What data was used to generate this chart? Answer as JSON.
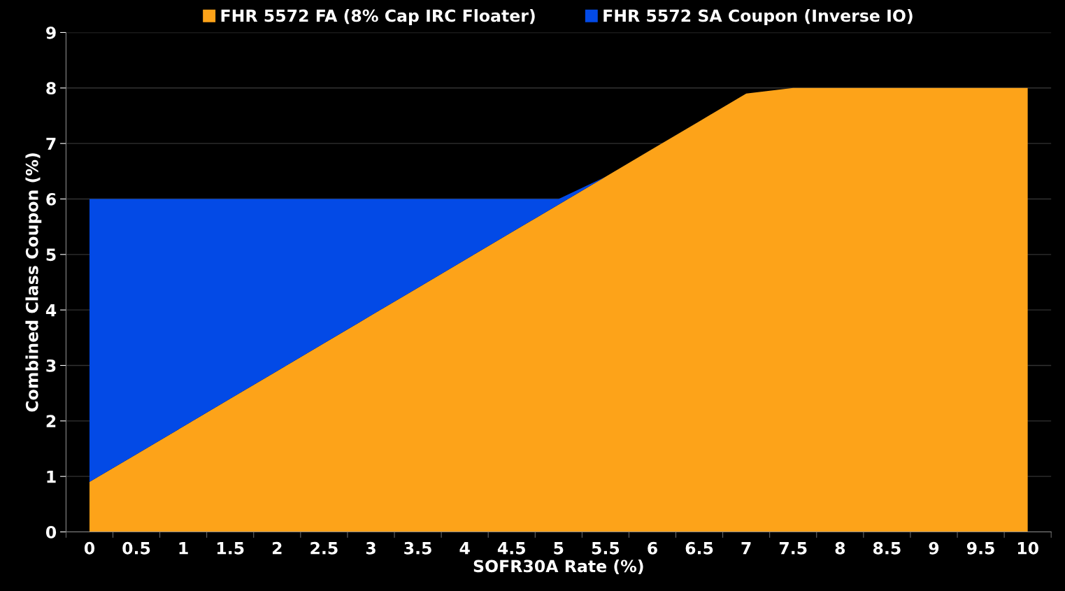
{
  "chart_data": {
    "type": "area",
    "stacked": true,
    "xlabel": "SOFR30A Rate (%)",
    "ylabel": "Combined Class Coupon (%)",
    "categories": [
      "0",
      "0.5",
      "1",
      "1.5",
      "2",
      "2.5",
      "3",
      "3.5",
      "4",
      "4.5",
      "5",
      "5.5",
      "6",
      "6.5",
      "7",
      "7.5",
      "8",
      "8.5",
      "9",
      "9.5",
      "10"
    ],
    "series": [
      {
        "name": "FHR 5572 FA (8% Cap IRC Floater)",
        "color": "#fda319",
        "values": [
          0.9,
          1.4,
          1.9,
          2.4,
          2.9,
          3.4,
          3.9,
          4.4,
          4.9,
          5.4,
          5.9,
          6.4,
          6.9,
          7.4,
          7.9,
          8,
          8,
          8,
          8,
          8,
          8
        ]
      },
      {
        "name": "FHR 5572 SA Coupon (Inverse IO)",
        "color": "#034ae6",
        "values": [
          5.1,
          4.6,
          4.1,
          3.6,
          3.1,
          2.6,
          2.1,
          1.6,
          1.1,
          0.6,
          0.1,
          0,
          0,
          0,
          0,
          0,
          0,
          0,
          0,
          0,
          0
        ]
      }
    ],
    "ylim": [
      0,
      9
    ],
    "yticks": [
      0,
      1,
      2,
      3,
      4,
      5,
      6,
      7,
      8,
      9
    ],
    "grid": "y",
    "legend": "top"
  }
}
